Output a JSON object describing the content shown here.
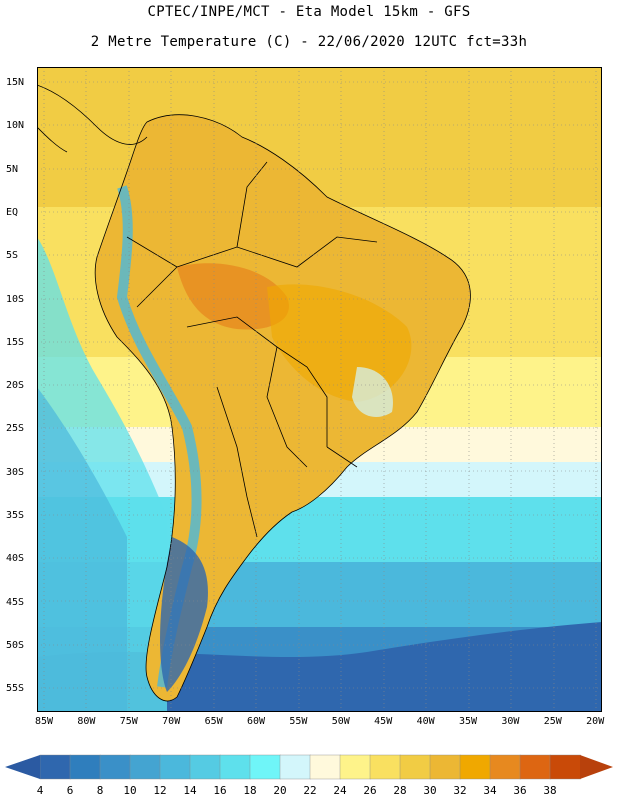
{
  "header": {
    "title_line1": "CPTEC/INPE/MCT -  Eta Model 15km - GFS",
    "title_line2": "2 Metre Temperature (C) - 22/06/2020 12UTC fct=33h"
  },
  "map": {
    "latitude_labels": [
      "15N",
      "10N",
      "5N",
      "EQ",
      "5S",
      "10S",
      "15S",
      "20S",
      "25S",
      "30S",
      "35S",
      "40S",
      "45S",
      "50S",
      "55S"
    ],
    "longitude_labels": [
      "85W",
      "80W",
      "75W",
      "70W",
      "65W",
      "60W",
      "55W",
      "50W",
      "45W",
      "40W",
      "35W",
      "30W",
      "25W",
      "20W"
    ]
  },
  "colorbar": {
    "labels": [
      "4",
      "6",
      "8",
      "10",
      "12",
      "14",
      "16",
      "18",
      "20",
      "22",
      "24",
      "26",
      "28",
      "30",
      "32",
      "34",
      "36",
      "38"
    ],
    "colors": [
      "#2f67ae",
      "#2f7ebd",
      "#3a90c8",
      "#44a4d1",
      "#4bb8dc",
      "#55cbe3",
      "#5ee0ec",
      "#6ff5f8",
      "#d3f6fb",
      "#fff9dc",
      "#fef38a",
      "#f9e060",
      "#f1cc44",
      "#ecb734",
      "#f0a800",
      "#e7891f",
      "#dd6612",
      "#c94a08"
    ],
    "low_end_color": "#2b5aa2",
    "high_end_color": "#b8410c"
  }
}
